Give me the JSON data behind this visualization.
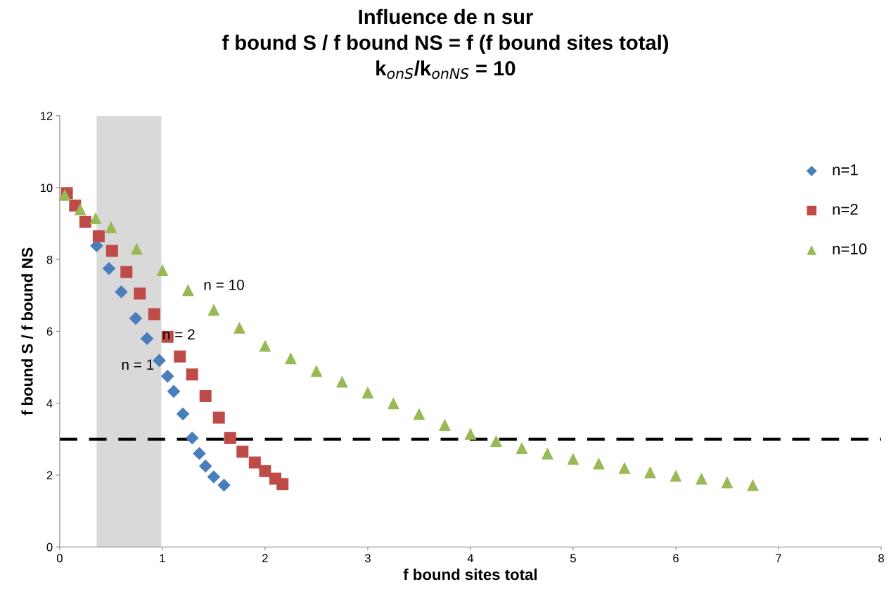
{
  "chart_data": {
    "type": "scatter",
    "title": "Influence de n sur\nf bound S / f bound NS = f (f bound sites total)\nk$_{onS}$/k$_{onNS}$ = 10",
    "xlabel": "f bound sites total",
    "ylabel": "f bound S / f bound NS",
    "xlim": [
      0,
      8
    ],
    "ylim": [
      0,
      12
    ],
    "xticks": [
      0,
      1,
      2,
      3,
      4,
      5,
      6,
      7,
      8
    ],
    "yticks": [
      0,
      2,
      4,
      6,
      8,
      10,
      12
    ],
    "grid": false,
    "legend": "right",
    "series": [
      {
        "name": "n=1",
        "color": "#4a7ebb",
        "marker": "diamond",
        "x": [
          0.36,
          0.48,
          0.6,
          0.74,
          0.85,
          0.97,
          1.05,
          1.11,
          1.2,
          1.29,
          1.36,
          1.42,
          1.5,
          1.6
        ],
        "values": [
          8.38,
          7.75,
          7.1,
          6.36,
          5.8,
          5.19,
          4.75,
          4.33,
          3.7,
          3.03,
          2.6,
          2.25,
          1.95,
          1.72
        ]
      },
      {
        "name": "n=2",
        "color": "#be4b48",
        "marker": "square",
        "x": [
          0.07,
          0.15,
          0.25,
          0.38,
          0.51,
          0.65,
          0.78,
          0.92,
          1.05,
          1.17,
          1.29,
          1.42,
          1.55,
          1.66,
          1.78,
          1.9,
          2.0,
          2.1,
          2.17
        ],
        "values": [
          9.85,
          9.5,
          9.05,
          8.65,
          8.24,
          7.65,
          7.05,
          6.48,
          5.85,
          5.3,
          4.8,
          4.2,
          3.6,
          3.03,
          2.65,
          2.35,
          2.11,
          1.9,
          1.75
        ]
      },
      {
        "name": "n=10",
        "color": "#98b954",
        "marker": "triangle",
        "x": [
          0.05,
          0.2,
          0.35,
          0.5,
          0.75,
          1.0,
          1.25,
          1.5,
          1.75,
          2.0,
          2.25,
          2.5,
          2.75,
          3.0,
          3.25,
          3.5,
          3.75,
          4.0,
          4.25,
          4.5,
          4.75,
          5.0,
          5.25,
          5.5,
          5.75,
          6.0,
          6.25,
          6.5,
          6.75
        ],
        "values": [
          9.8,
          9.4,
          9.15,
          8.9,
          8.3,
          7.7,
          7.15,
          6.6,
          6.1,
          5.6,
          5.25,
          4.9,
          4.6,
          4.3,
          4.0,
          3.7,
          3.4,
          3.15,
          2.95,
          2.75,
          2.6,
          2.45,
          2.32,
          2.2,
          2.08,
          1.98,
          1.9,
          1.8,
          1.72
        ]
      }
    ],
    "ref_lines": [
      {
        "axis": "y",
        "value": 3,
        "color": "#000000",
        "line_style": "dashed"
      }
    ],
    "bands": [
      {
        "axis": "x",
        "from": 0.36,
        "to": 0.99,
        "color": "#d9d9d9"
      }
    ],
    "annotations": [
      "n = 10",
      "n = 2",
      "n = 1"
    ]
  }
}
